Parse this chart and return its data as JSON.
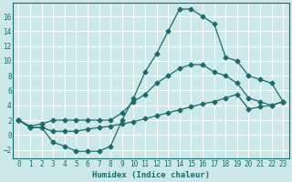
{
  "xlabel": "Humidex (Indice chaleur)",
  "background_color": "#cce8e8",
  "grid_color": "#ffffff",
  "line_color": "#1a6b6b",
  "xlim": [
    -0.5,
    23.5
  ],
  "ylim": [
    -3.2,
    17.8
  ],
  "xticks": [
    0,
    1,
    2,
    3,
    4,
    5,
    6,
    7,
    8,
    9,
    10,
    11,
    12,
    13,
    14,
    15,
    16,
    17,
    18,
    19,
    20,
    21,
    22,
    23
  ],
  "yticks": [
    -2,
    0,
    2,
    4,
    6,
    8,
    10,
    12,
    14,
    16
  ],
  "curve1_x": [
    0,
    1,
    2,
    3,
    4,
    5,
    6,
    7,
    8,
    9,
    10,
    11,
    12,
    13,
    14,
    15,
    16,
    17,
    18,
    19,
    20,
    21,
    22,
    23
  ],
  "curve1_y": [
    2,
    1,
    1,
    -1,
    -1.5,
    -2.2,
    -2.2,
    -2.2,
    -1.5,
    2,
    5,
    8.5,
    11,
    14,
    17,
    17,
    16,
    15,
    10.5,
    10,
    8,
    7.5,
    7,
    4.5
  ],
  "curve2_x": [
    0,
    1,
    2,
    3,
    4,
    5,
    6,
    7,
    8,
    9,
    10,
    11,
    12,
    13,
    14,
    15,
    16,
    17,
    18,
    19,
    20,
    21,
    22,
    23
  ],
  "curve2_y": [
    2,
    1.2,
    1.5,
    2,
    2,
    2,
    2,
    2,
    2,
    3,
    4.5,
    5.5,
    7,
    8,
    9,
    9.5,
    9.5,
    8.5,
    8,
    7,
    5,
    4.5,
    4,
    4.5
  ],
  "curve3_x": [
    0,
    1,
    2,
    3,
    4,
    5,
    6,
    7,
    8,
    9,
    10,
    11,
    12,
    13,
    14,
    15,
    16,
    17,
    18,
    19,
    20,
    21,
    22,
    23
  ],
  "curve3_y": [
    2,
    1,
    1,
    0.5,
    0.5,
    0.5,
    0.8,
    1,
    1.2,
    1.5,
    1.8,
    2.2,
    2.6,
    3,
    3.4,
    3.8,
    4.2,
    4.5,
    5,
    5.5,
    3.5,
    3.8,
    4,
    4.5
  ]
}
